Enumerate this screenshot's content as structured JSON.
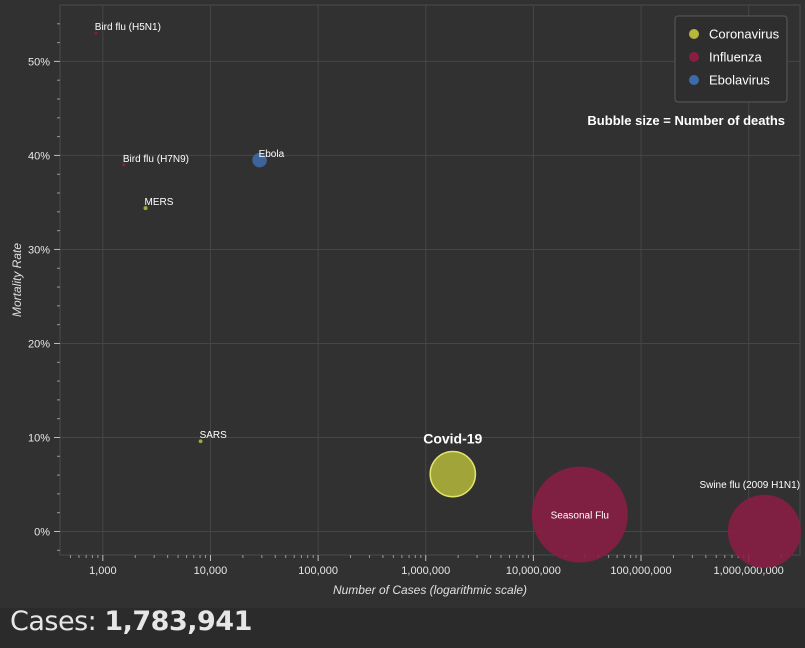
{
  "chart_data": {
    "type": "scatter",
    "xlabel": "Number of Cases (logarithmic scale)",
    "ylabel": "Mortality Rate",
    "x_scale": "log",
    "xlim": [
      400,
      3000000000
    ],
    "ylim": [
      -2.5,
      56
    ],
    "x_ticks": [
      1000,
      10000,
      100000,
      1000000,
      10000000,
      100000000,
      1000000000
    ],
    "x_tick_labels": [
      "1,000",
      "10,000",
      "100,000",
      "1,000,000",
      "10,000,000",
      "100,000,000",
      "1,000,000,000"
    ],
    "y_ticks": [
      0,
      10,
      20,
      30,
      40,
      50
    ],
    "y_tick_labels": [
      "0%",
      "10%",
      "20%",
      "30%",
      "40%",
      "50%"
    ],
    "grid": true,
    "legend_position": "top-right",
    "annotation": "Bubble size = Number of deaths",
    "legend": [
      {
        "name": "Coronavirus",
        "color": "#b5b83a"
      },
      {
        "name": "Influenza",
        "color": "#8a1d44"
      },
      {
        "name": "Ebolavirus",
        "color": "#3d6aa8"
      }
    ],
    "points": [
      {
        "label": "Bird flu (H5N1)",
        "group": "Influenza",
        "x": 860,
        "y": 53,
        "deaths": 455
      },
      {
        "label": "Bird flu (H7N9)",
        "group": "Influenza",
        "x": 1568,
        "y": 39,
        "deaths": 616
      },
      {
        "label": "MERS",
        "group": "Coronavirus",
        "x": 2494,
        "y": 34.4,
        "deaths": 858
      },
      {
        "label": "Ebola",
        "group": "Ebolavirus",
        "x": 28600,
        "y": 39.5,
        "deaths": 11325
      },
      {
        "label": "SARS",
        "group": "Coronavirus",
        "x": 8096,
        "y": 9.6,
        "deaths": 774
      },
      {
        "label": "Covid-19",
        "group": "Coronavirus",
        "x": 1783941,
        "y": 6.1,
        "deaths": 108800,
        "highlight": true
      },
      {
        "label": "Seasonal Flu",
        "group": "Influenza",
        "x": 27000000,
        "y": 1.8,
        "deaths": 490000
      },
      {
        "label": "Swine flu (2009 H1N1)",
        "group": "Influenza",
        "x": 1400000000,
        "y": 0.02,
        "deaths": 284000
      }
    ]
  },
  "footer": {
    "cases_label": "Cases:",
    "cases_value": "1,783,941"
  }
}
